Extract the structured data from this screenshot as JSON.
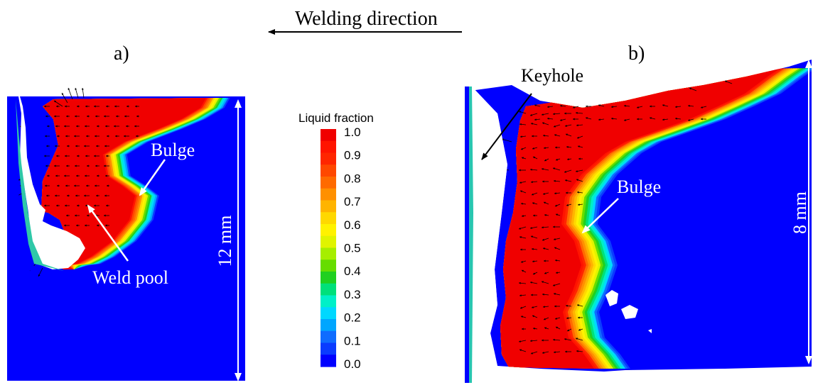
{
  "header": {
    "direction_label": "Welding direction",
    "panel_a_label": "a)",
    "panel_b_label": "b)"
  },
  "panel_a": {
    "dimension_label": "12 mm",
    "annotations": {
      "bulge": "Bulge",
      "weld_pool": "Weld pool"
    }
  },
  "panel_b": {
    "dimension_label": "8 mm",
    "annotations": {
      "keyhole": "Keyhole",
      "bulge": "Bulge"
    }
  },
  "colorbar": {
    "title": "Liquid fraction",
    "ticks": [
      "1.0",
      "0.9",
      "0.8",
      "0.7",
      "0.6",
      "0.5",
      "0.4",
      "0.3",
      "0.2",
      "0.1",
      "0.0"
    ],
    "colors": [
      "#0000ff",
      "#0a3bff",
      "#0f6cff",
      "#00a6ff",
      "#00d8ff",
      "#00f0c8",
      "#00e07a",
      "#20d020",
      "#66dd00",
      "#a6ee00",
      "#e0f400",
      "#fff200",
      "#ffd800",
      "#ffb400",
      "#ff9000",
      "#ff6a00",
      "#ff4800",
      "#ff2600",
      "#ff1400",
      "#f00000"
    ]
  },
  "colors": {
    "solid": "#0000ff",
    "liquid": "#ff2a00",
    "velocity_vectors": "#000000",
    "annotation": "#ffffff"
  }
}
